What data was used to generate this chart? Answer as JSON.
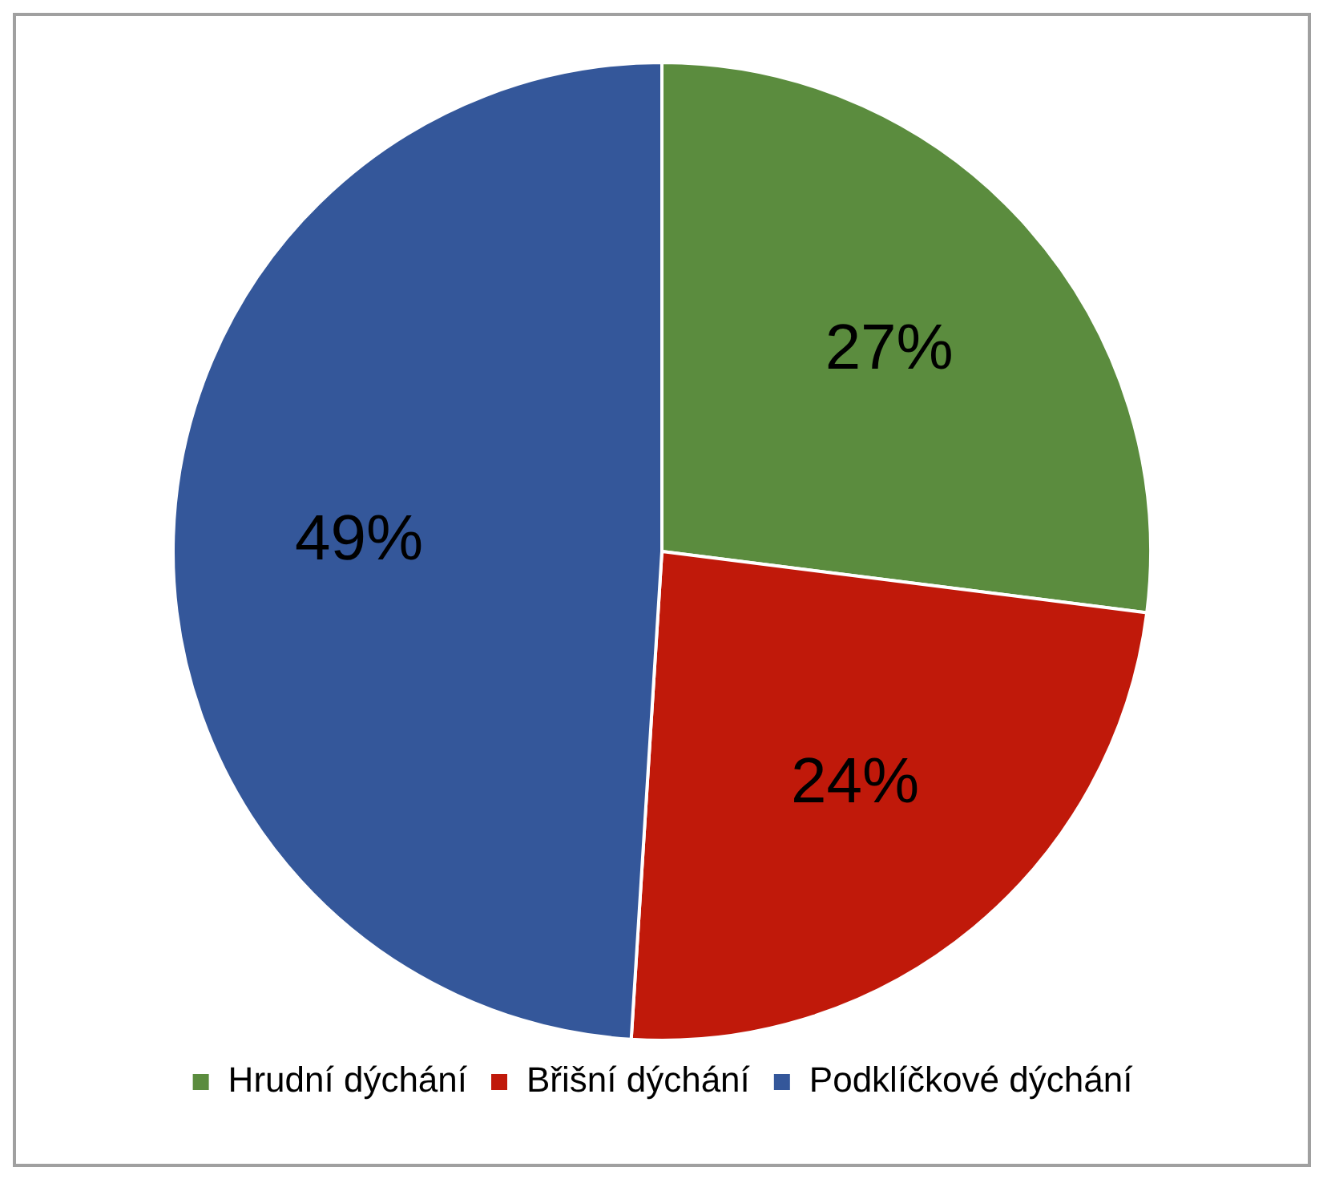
{
  "chart_data": {
    "type": "pie",
    "categories": [
      "Hrudní dýchání",
      "Břišní dýchání",
      "Podklíčkové dýchání"
    ],
    "values": [
      27,
      24,
      49
    ],
    "value_labels": [
      "27%",
      "24%",
      "49%"
    ],
    "colors": [
      "#5b8c3e",
      "#c0190a",
      "#34579a"
    ],
    "legend": "bottom"
  }
}
